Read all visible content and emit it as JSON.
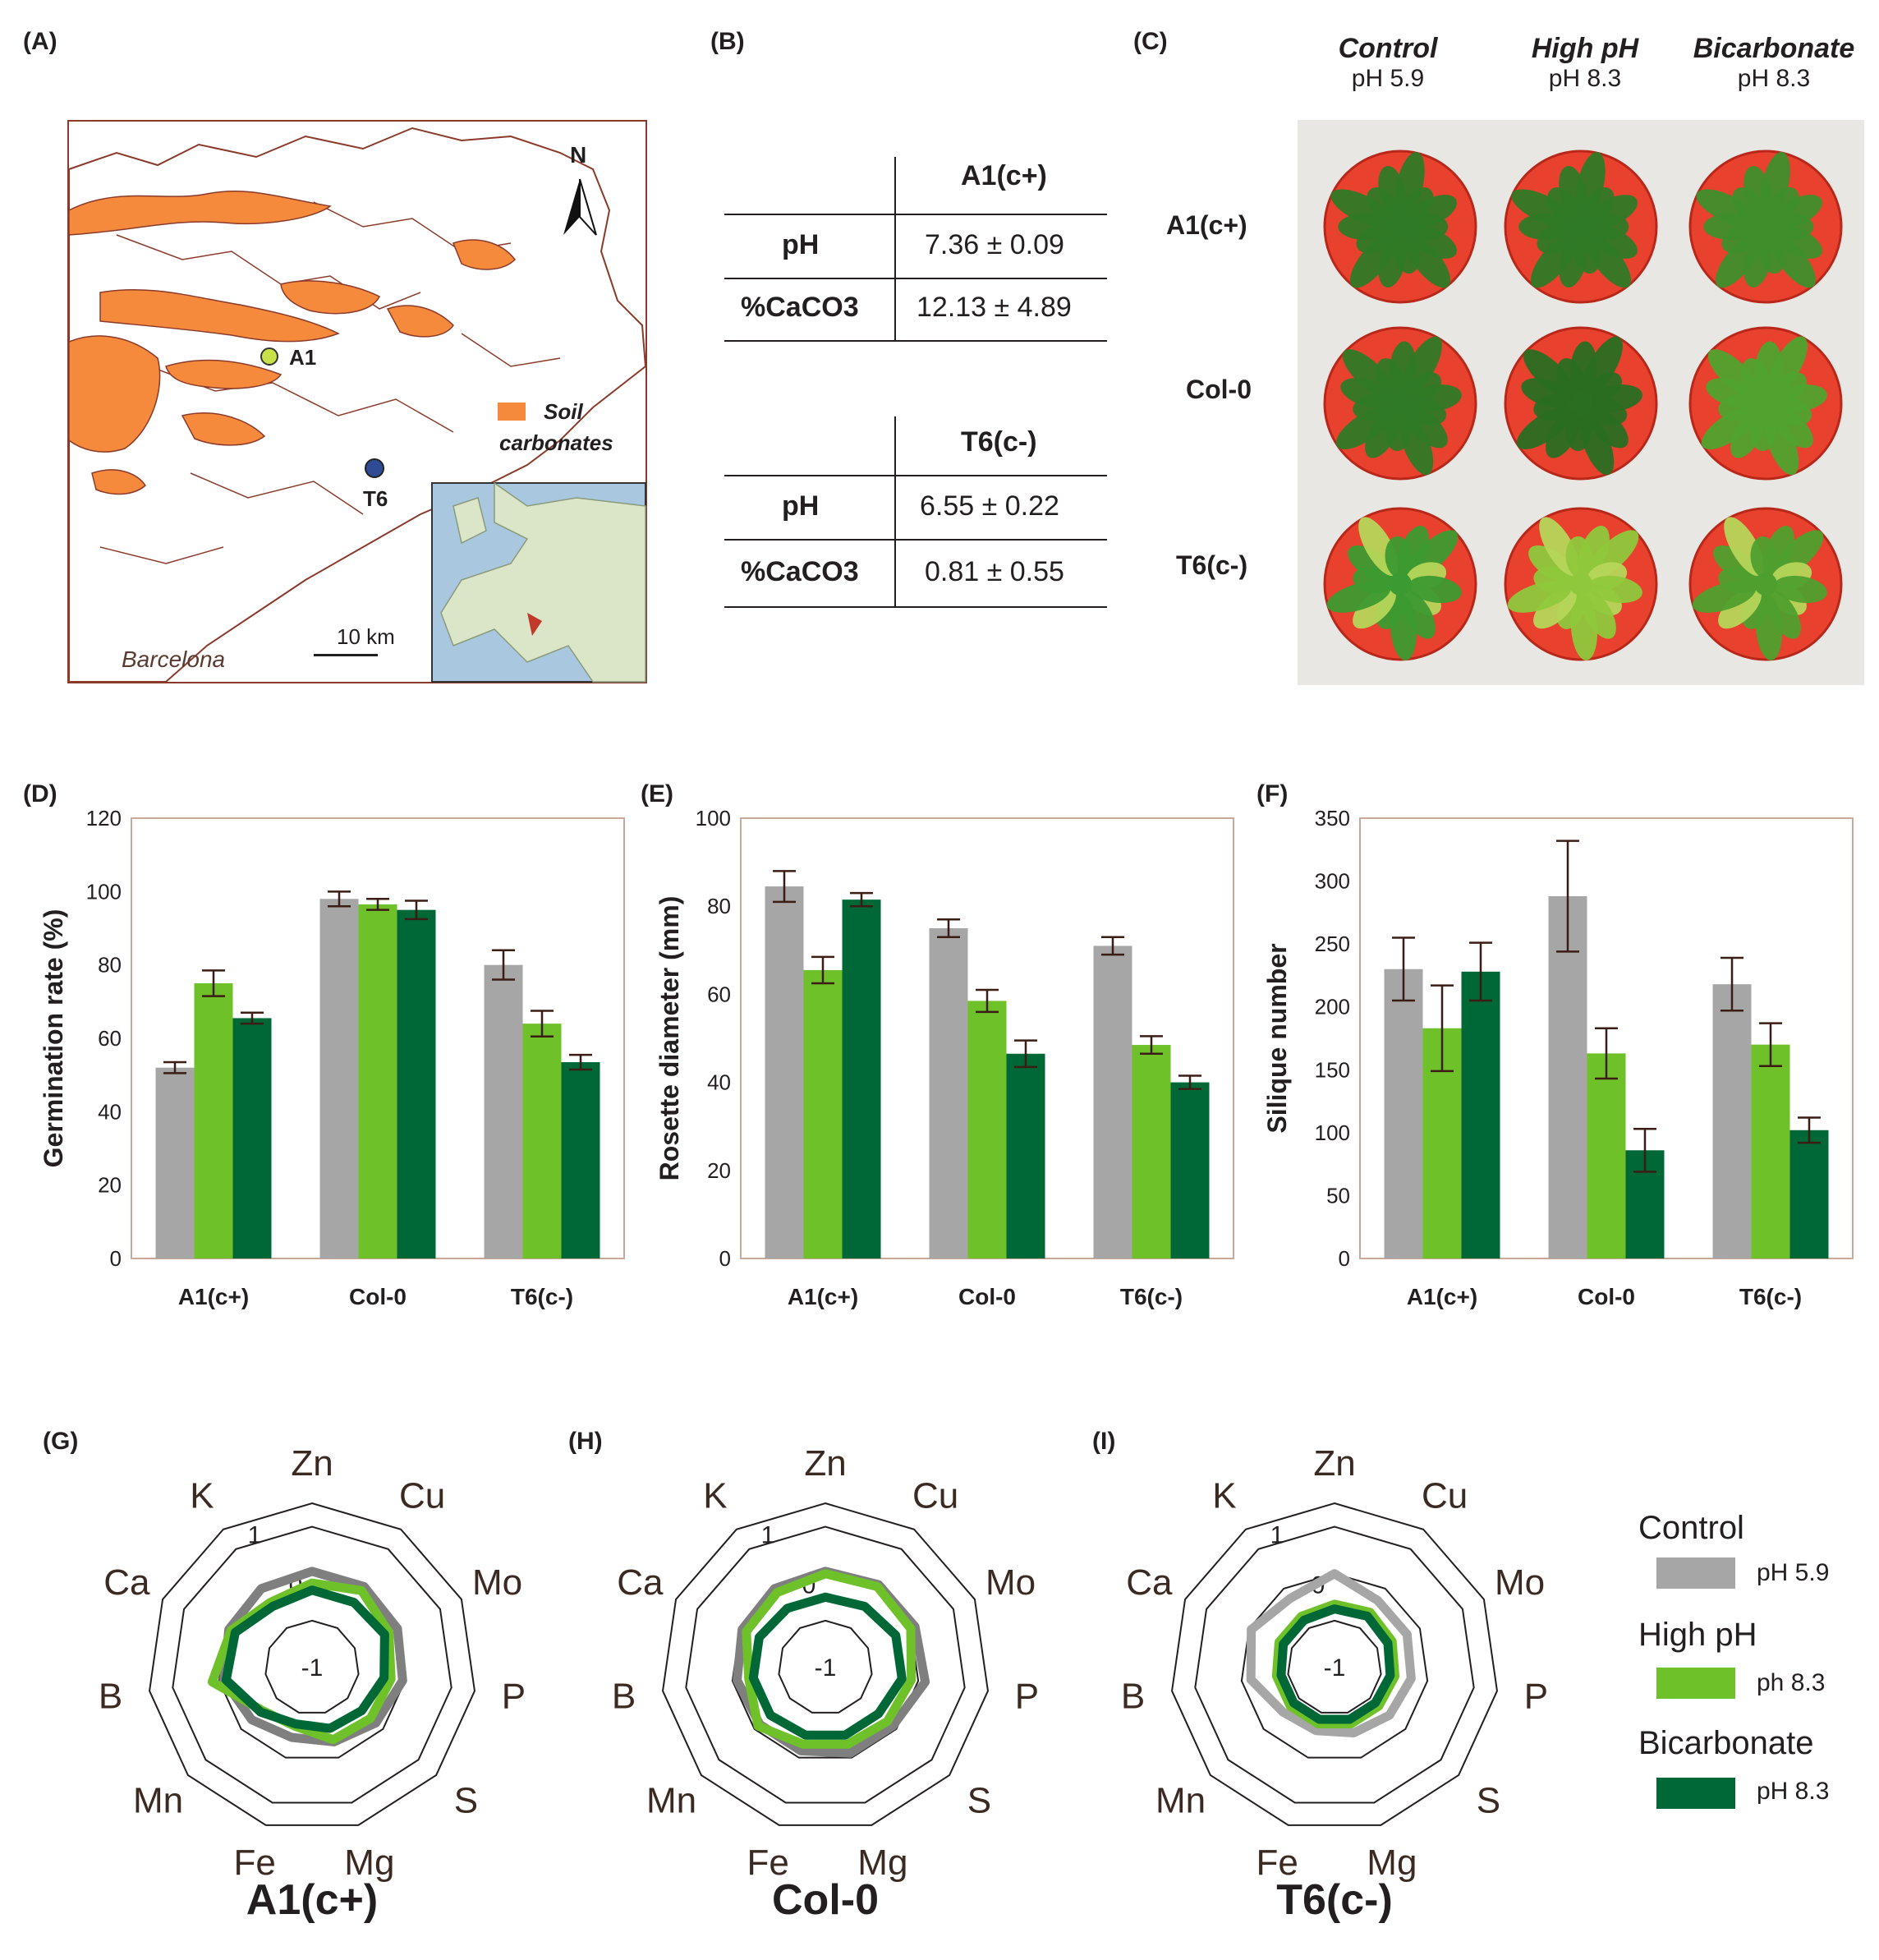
{
  "panel_labels": {
    "A": "(A)",
    "B": "(B)",
    "C": "(C)",
    "D": "(D)",
    "E": "(E)",
    "F": "(F)",
    "G": "(G)",
    "H": "(H)",
    "I": "(I)"
  },
  "map": {
    "north": "N",
    "site_a1": "A1",
    "site_t6": "T6",
    "legend_line1": "Soil",
    "legend_line2": "carbonates",
    "scale": "10 km",
    "city": "Barcelona",
    "carbonate_color": "#f58a3c",
    "a1_color": "#c8e04a",
    "t6_color": "#2f4b94"
  },
  "tables": [
    {
      "header": "A1(c+)",
      "rows": [
        {
          "label": "pH",
          "value": "7.36 ± 0.09"
        },
        {
          "label": "%CaCO3",
          "value": "12.13 ± 4.89"
        }
      ]
    },
    {
      "header": "T6(c-)",
      "rows": [
        {
          "label": "pH",
          "value": "6.55 ± 0.22"
        },
        {
          "label": "%CaCO3",
          "value": "0.81 ± 0.55"
        }
      ]
    }
  ],
  "photo": {
    "columns": [
      {
        "name": "Control",
        "ph": "pH 5.9"
      },
      {
        "name": "High pH",
        "ph": "pH 8.3"
      },
      {
        "name": "Bicarbonate",
        "ph": "pH 8.3"
      }
    ],
    "rows": [
      "A1(c+)",
      "Col-0",
      "T6(c-)"
    ]
  },
  "colors": {
    "control": "#a6a6a6",
    "highph": "#6fc12a",
    "bicarb": "#006837",
    "radar_control": "#7f7f7f",
    "radar_control_t6": "#a6a6a6"
  },
  "chart_data": [
    {
      "id": "D",
      "type": "bar",
      "ylabel": "Germination rate (%)",
      "ylim": [
        0,
        120
      ],
      "yticks": [
        0,
        20,
        40,
        60,
        80,
        100,
        120
      ],
      "categories": [
        "A1(c+)",
        "Col-0",
        "T6(c-)"
      ],
      "series": [
        {
          "name": "Control",
          "values": [
            52,
            98,
            80
          ],
          "errors": [
            1.5,
            2,
            4
          ]
        },
        {
          "name": "High pH",
          "values": [
            75,
            96.5,
            64
          ],
          "errors": [
            3.5,
            1.5,
            3.5
          ]
        },
        {
          "name": "Bicarbonate",
          "values": [
            65.5,
            95,
            53.5
          ],
          "errors": [
            1.5,
            2.5,
            2
          ]
        }
      ]
    },
    {
      "id": "E",
      "type": "bar",
      "ylabel": "Rosette diameter (mm)",
      "ylim": [
        0,
        100
      ],
      "yticks": [
        0,
        20,
        40,
        60,
        80,
        100
      ],
      "categories": [
        "A1(c+)",
        "Col-0",
        "T6(c-)"
      ],
      "series": [
        {
          "name": "Control",
          "values": [
            84.5,
            75,
            71
          ],
          "errors": [
            3.5,
            2,
            2
          ]
        },
        {
          "name": "High pH",
          "values": [
            65.5,
            58.5,
            48.5
          ],
          "errors": [
            3,
            2.5,
            2
          ]
        },
        {
          "name": "Bicarbonate",
          "values": [
            81.5,
            46.5,
            40
          ],
          "errors": [
            1.5,
            3,
            1.5
          ]
        }
      ]
    },
    {
      "id": "F",
      "type": "bar",
      "ylabel": "Silique number",
      "ylim": [
        0,
        350
      ],
      "yticks": [
        0,
        50,
        100,
        150,
        200,
        250,
        300,
        350
      ],
      "categories": [
        "A1(c+)",
        "Col-0",
        "T6(c-)"
      ],
      "series": [
        {
          "name": "Control",
          "values": [
            230,
            288,
            218
          ],
          "errors": [
            25,
            44,
            21
          ]
        },
        {
          "name": "High pH",
          "values": [
            183,
            163,
            170
          ],
          "errors": [
            34,
            20,
            17
          ]
        },
        {
          "name": "Bicarbonate",
          "values": [
            228,
            86,
            102
          ],
          "errors": [
            23,
            17,
            10
          ]
        }
      ]
    },
    {
      "id": "G",
      "type": "radar",
      "title": "A1(c+)",
      "axes": [
        "Zn",
        "Cu",
        "Mo",
        "P",
        "S",
        "Mg",
        "Fe",
        "Mn",
        "B",
        "Ca",
        "K"
      ],
      "rlim": [
        -2,
        1.5
      ],
      "rings": [
        -1,
        0,
        1
      ],
      "ring_labels": [
        "-1",
        "0",
        "1"
      ],
      "series": [
        {
          "name": "Control",
          "values": [
            0.05,
            0.05,
            0.0,
            -0.05,
            -0.2,
            -0.35,
            -0.45,
            -0.3,
            -0.1,
            -0.05,
            0.0
          ]
        },
        {
          "name": "High pH",
          "values": [
            -0.2,
            -0.05,
            -0.2,
            -0.3,
            -0.35,
            -0.4,
            -0.7,
            -0.6,
            0.15,
            -0.1,
            -0.35
          ]
        },
        {
          "name": "Bicarbonate",
          "values": [
            -0.35,
            -0.35,
            -0.3,
            -0.45,
            -0.6,
            -0.65,
            -0.75,
            -0.55,
            -0.15,
            -0.2,
            -0.45
          ]
        }
      ]
    },
    {
      "id": "H",
      "type": "radar",
      "title": "Col-0",
      "axes": [
        "Zn",
        "Cu",
        "Mo",
        "P",
        "S",
        "Mg",
        "Fe",
        "Mn",
        "B",
        "Ca",
        "K"
      ],
      "rlim": [
        -2,
        1.5
      ],
      "rings": [
        -1,
        0,
        1
      ],
      "ring_labels": [
        "-1",
        "0",
        "1"
      ],
      "series": [
        {
          "name": "Control",
          "values": [
            0.05,
            0.1,
            0.1,
            0.15,
            -0.1,
            -0.1,
            -0.15,
            -0.15,
            -0.1,
            -0.05,
            0.0
          ]
        },
        {
          "name": "High pH",
          "values": [
            0.0,
            0.05,
            0.0,
            -0.15,
            -0.25,
            -0.3,
            -0.3,
            -0.1,
            -0.35,
            -0.15,
            -0.1
          ]
        },
        {
          "name": "Bicarbonate",
          "values": [
            -0.5,
            -0.45,
            -0.35,
            -0.35,
            -0.5,
            -0.5,
            -0.5,
            -0.45,
            -0.45,
            -0.45,
            -0.5
          ]
        }
      ]
    },
    {
      "id": "I",
      "type": "radar",
      "title": "T6(c-)",
      "axes": [
        "Zn",
        "Cu",
        "Mo",
        "P",
        "S",
        "Mg",
        "Fe",
        "Mn",
        "B",
        "Ca",
        "K"
      ],
      "rlim": [
        -2,
        1.5
      ],
      "rings": [
        -1,
        0,
        1
      ],
      "ring_labels": [
        "-1",
        "0",
        "1"
      ],
      "series": [
        {
          "name": "Control",
          "values": [
            0.0,
            -0.3,
            -0.3,
            -0.35,
            -0.45,
            -0.55,
            -0.6,
            -0.55,
            -0.2,
            -0.05,
            -0.25
          ]
        },
        {
          "name": "High pH",
          "values": [
            -0.65,
            -0.6,
            -0.65,
            -0.7,
            -0.75,
            -0.75,
            -0.75,
            -0.75,
            -0.75,
            -0.7,
            -0.7
          ]
        },
        {
          "name": "Bicarbonate",
          "values": [
            -0.75,
            -0.7,
            -0.75,
            -0.8,
            -0.85,
            -0.85,
            -0.85,
            -0.85,
            -0.85,
            -0.8,
            -0.8
          ]
        }
      ]
    }
  ],
  "legend": [
    {
      "name": "Control",
      "ph": "pH 5.9"
    },
    {
      "name": "High pH",
      "ph": "ph 8.3"
    },
    {
      "name": "Bicarbonate",
      "ph": "pH 8.3"
    }
  ]
}
